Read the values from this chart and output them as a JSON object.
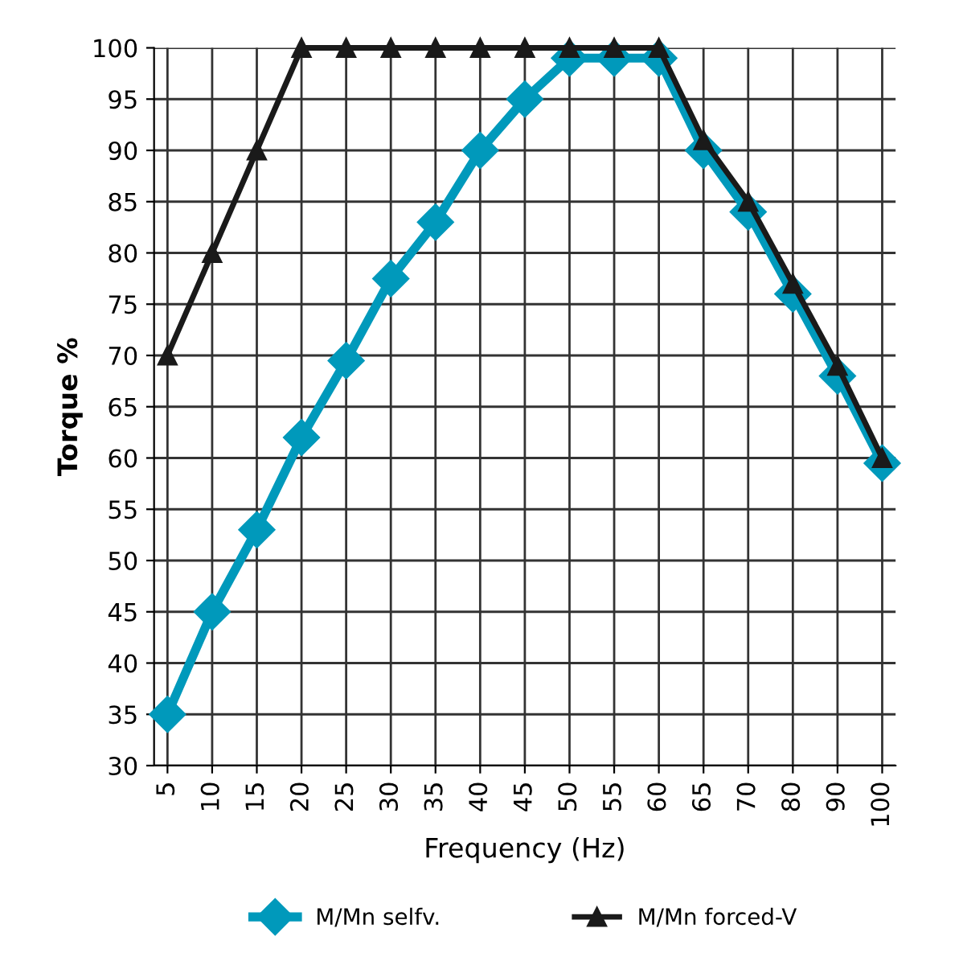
{
  "chart_data": {
    "type": "line",
    "xlabel": "Frequency (Hz)",
    "ylabel": "Torque %",
    "categories": [
      "5",
      "10",
      "15",
      "20",
      "25",
      "30",
      "35",
      "40",
      "45",
      "50",
      "55",
      "60",
      "65",
      "70",
      "80",
      "90",
      "100"
    ],
    "series": [
      {
        "name": "M/Mn selfv.",
        "color": "#0099bb",
        "marker": "diamond",
        "values": [
          35,
          45,
          53,
          62,
          69.5,
          77.5,
          83,
          90,
          95,
          99,
          99,
          99,
          90,
          84,
          76,
          68,
          59.5
        ]
      },
      {
        "name": "M/Mn forced-V",
        "color": "#1a1a1a",
        "marker": "triangle",
        "values": [
          70,
          80,
          90,
          100,
          100,
          100,
          100,
          100,
          100,
          100,
          100,
          100,
          91,
          85,
          77,
          69,
          60
        ]
      }
    ],
    "ylim": [
      30,
      100
    ],
    "yticks": [
      30,
      35,
      40,
      45,
      50,
      55,
      60,
      65,
      70,
      75,
      80,
      85,
      90,
      95,
      100
    ],
    "grid": true,
    "legend": "bottom",
    "line_style": "solid"
  }
}
